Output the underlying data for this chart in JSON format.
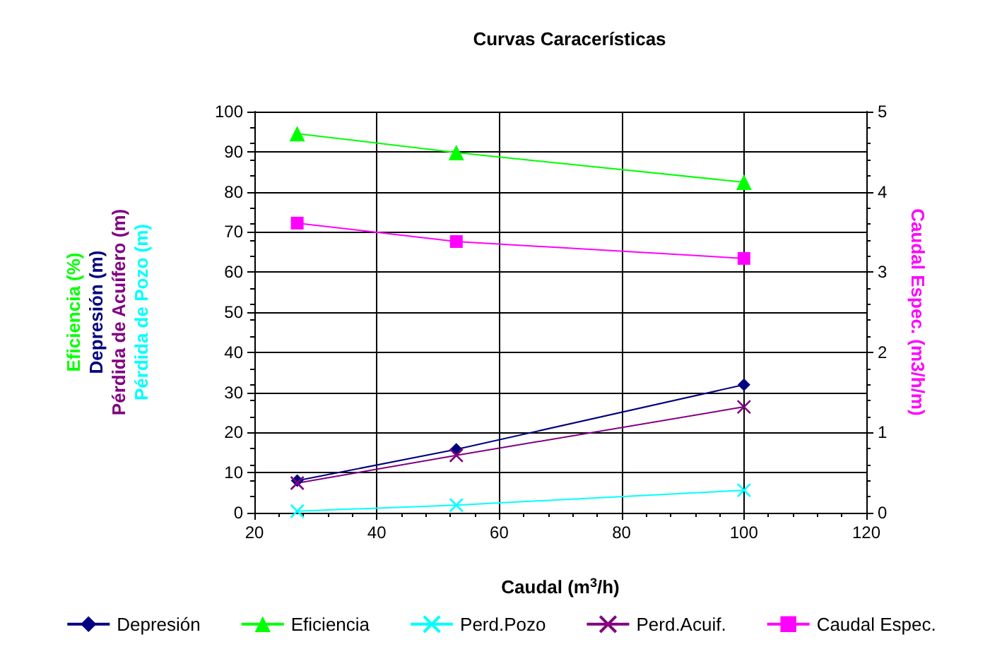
{
  "chart_data": {
    "type": "line",
    "title": "Curvas Caracerísticas",
    "xlabel": "Caudal (m$^{3}$/h)",
    "ylabel": "Eficiencia (%)\nDepresión (m)\nPérdida de Acuífero (m)\nPérdida de Pozo (m)",
    "y2label": "Caudal Espec. (m3/h/m)",
    "x": [
      27,
      53,
      100
    ],
    "series": [
      {
        "name": "Depresión",
        "color": "#000080",
        "marker": "diamond",
        "values": [
          8.0,
          15.8,
          31.9
        ]
      },
      {
        "name": "Eficiencia",
        "color": "#00ff00",
        "marker": "triangle",
        "values": [
          94.5,
          89.8,
          82.4
        ]
      },
      {
        "name": "Perd.Pozo",
        "color": "#00ffff",
        "marker": "cross",
        "values": [
          0.4,
          1.9,
          5.6
        ]
      },
      {
        "name": "Perd.Acuif.",
        "color": "#800080",
        "marker": "cross",
        "values": [
          7.4,
          14.3,
          26.4
        ]
      },
      {
        "name": "Caudal Espec.",
        "color": "#ff00ff",
        "marker": "square",
        "axis": "y2",
        "values": [
          3.61,
          3.38,
          3.17
        ]
      }
    ],
    "xlim": [
      20,
      120
    ],
    "xticks": [
      20,
      40,
      60,
      80,
      100,
      120
    ],
    "ylim": [
      0,
      100
    ],
    "yticks": [
      0,
      10,
      20,
      30,
      40,
      50,
      60,
      70,
      80,
      90,
      100
    ],
    "y2lim": [
      0,
      5
    ],
    "y2ticks": [
      0,
      1,
      2,
      3,
      4,
      5
    ],
    "grid": true,
    "legend": "bottom"
  }
}
